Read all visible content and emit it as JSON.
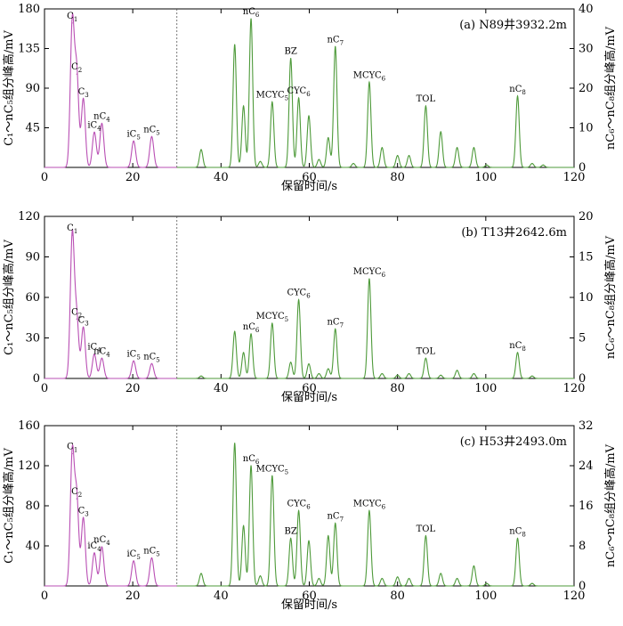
{
  "colors": {
    "light": "#b94fb4",
    "heavy": "#4e9a3a"
  },
  "xlabel": "保留时间/s",
  "chart_data": [
    {
      "type": "line",
      "panel_label": "(a) N89井3932.2m",
      "ylabel_left": "C₁～nC₅组分峰高/mV",
      "ylabel_right": "nC₆～nC₈组分峰高/mV",
      "xlim": [
        0,
        120
      ],
      "xticks": [
        0,
        20,
        40,
        60,
        80,
        100,
        120
      ],
      "ylim_left": [
        0,
        180
      ],
      "yticks_left": [
        45,
        90,
        135,
        180
      ],
      "ylim_right": [
        0,
        40
      ],
      "yticks_right": [
        0,
        10,
        20,
        30,
        40
      ],
      "divider_x": 30,
      "series": [
        {
          "axis": "left",
          "color": "light",
          "peaks": [
            {
              "t": 6.3,
              "h": 164,
              "label": "C",
              "sub": "1"
            },
            {
              "t": 7.3,
              "h": 106,
              "label": "C",
              "sub": "2"
            },
            {
              "t": 8.8,
              "h": 78,
              "label": "C",
              "sub": "3"
            },
            {
              "t": 11.3,
              "h": 40,
              "label": "iC",
              "sub": "4"
            },
            {
              "t": 13.0,
              "h": 50,
              "label": "nC",
              "sub": "4"
            },
            {
              "t": 20.2,
              "h": 30,
              "label": "iC",
              "sub": "5"
            },
            {
              "t": 24.3,
              "h": 35,
              "label": "nC",
              "sub": "5"
            }
          ]
        },
        {
          "axis": "right",
          "color": "heavy",
          "peaks": [
            {
              "t": 35.5,
              "h": 4.5
            },
            {
              "t": 43.1,
              "h": 31
            },
            {
              "t": 45.1,
              "h": 15.5
            },
            {
              "t": 46.8,
              "h": 37.5,
              "label": "nC",
              "sub": "6"
            },
            {
              "t": 48.9,
              "h": 1.5
            },
            {
              "t": 51.6,
              "h": 16.5,
              "label": "MCYC",
              "sub": "5"
            },
            {
              "t": 55.8,
              "h": 27.5,
              "label": "BZ",
              "sub": ""
            },
            {
              "t": 57.6,
              "h": 17.5,
              "label": "CYC",
              "sub": "6"
            },
            {
              "t": 59.9,
              "h": 13
            },
            {
              "t": 62.2,
              "h": 2
            },
            {
              "t": 64.3,
              "h": 7.5
            },
            {
              "t": 65.9,
              "h": 30.5,
              "label": "nC",
              "sub": "7"
            },
            {
              "t": 70.0,
              "h": 1
            },
            {
              "t": 73.6,
              "h": 21.5,
              "label": "MCYC",
              "sub": "6"
            },
            {
              "t": 76.5,
              "h": 5
            },
            {
              "t": 80.0,
              "h": 3
            },
            {
              "t": 82.6,
              "h": 3
            },
            {
              "t": 86.4,
              "h": 15.5,
              "label": "TOL",
              "sub": ""
            },
            {
              "t": 89.8,
              "h": 9
            },
            {
              "t": 93.5,
              "h": 5
            },
            {
              "t": 97.3,
              "h": 5
            },
            {
              "t": 100.2,
              "h": 0.6
            },
            {
              "t": 107.2,
              "h": 18,
              "label": "nC",
              "sub": "8"
            },
            {
              "t": 110.5,
              "h": 1
            },
            {
              "t": 113.0,
              "h": 0.6
            }
          ]
        }
      ]
    },
    {
      "type": "line",
      "panel_label": "(b) T13井2642.6m",
      "ylabel_left": "C₁～nC₅组分峰高/mV",
      "ylabel_right": "nC₆～nC₈组分峰高/mV",
      "xlim": [
        0,
        120
      ],
      "xticks": [
        0,
        20,
        40,
        60,
        80,
        100,
        120
      ],
      "ylim_left": [
        0,
        120
      ],
      "yticks_left": [
        0,
        30,
        60,
        90,
        120
      ],
      "ylim_right": [
        0,
        20
      ],
      "yticks_right": [
        0,
        5,
        10,
        15,
        20
      ],
      "divider_x": 30,
      "series": [
        {
          "axis": "left",
          "color": "light",
          "peaks": [
            {
              "t": 6.3,
              "h": 106,
              "label": "C",
              "sub": "1"
            },
            {
              "t": 7.3,
              "h": 44,
              "label": "C",
              "sub": "2"
            },
            {
              "t": 8.8,
              "h": 38,
              "label": "C",
              "sub": "3"
            },
            {
              "t": 11.3,
              "h": 18,
              "label": "iC",
              "sub": "4"
            },
            {
              "t": 13.0,
              "h": 15,
              "label": "nC",
              "sub": "4"
            },
            {
              "t": 20.2,
              "h": 13,
              "label": "iC",
              "sub": "5"
            },
            {
              "t": 24.3,
              "h": 11,
              "label": "nC",
              "sub": "5"
            }
          ]
        },
        {
          "axis": "right",
          "color": "heavy",
          "peaks": [
            {
              "t": 35.5,
              "h": 0.3
            },
            {
              "t": 43.1,
              "h": 5.8
            },
            {
              "t": 45.1,
              "h": 3.2
            },
            {
              "t": 46.8,
              "h": 5.5,
              "label": "nC",
              "sub": "6"
            },
            {
              "t": 51.6,
              "h": 6.8,
              "label": "MCYC",
              "sub": "5"
            },
            {
              "t": 55.8,
              "h": 2.0
            },
            {
              "t": 57.6,
              "h": 9.7,
              "label": "CYC",
              "sub": "6"
            },
            {
              "t": 59.9,
              "h": 1.8
            },
            {
              "t": 62.2,
              "h": 0.6
            },
            {
              "t": 64.3,
              "h": 1.2
            },
            {
              "t": 65.9,
              "h": 6.1,
              "label": "nC",
              "sub": "7"
            },
            {
              "t": 73.6,
              "h": 12.3,
              "label": "MCYC",
              "sub": "6"
            },
            {
              "t": 76.5,
              "h": 0.6
            },
            {
              "t": 80.0,
              "h": 0.4
            },
            {
              "t": 82.6,
              "h": 0.6
            },
            {
              "t": 86.4,
              "h": 2.5,
              "label": "TOL",
              "sub": ""
            },
            {
              "t": 89.8,
              "h": 0.4
            },
            {
              "t": 93.5,
              "h": 1.0
            },
            {
              "t": 97.3,
              "h": 0.6
            },
            {
              "t": 107.2,
              "h": 3.2,
              "label": "nC",
              "sub": "8"
            },
            {
              "t": 110.5,
              "h": 0.3
            }
          ]
        }
      ]
    },
    {
      "type": "line",
      "panel_label": "(c) H53井2493.0m",
      "ylabel_left": "C₁～nC₅组分峰高/mV",
      "ylabel_right": "nC₆～nC₈组分峰高/mV",
      "xlim": [
        0,
        120
      ],
      "xticks": [
        0,
        20,
        40,
        60,
        80,
        100,
        120
      ],
      "ylim_left": [
        0,
        160
      ],
      "yticks_left": [
        40,
        80,
        120,
        160
      ],
      "ylim_right": [
        0,
        32
      ],
      "yticks_right": [
        0,
        8,
        16,
        24,
        32
      ],
      "divider_x": 30,
      "series": [
        {
          "axis": "left",
          "color": "light",
          "peaks": [
            {
              "t": 6.3,
              "h": 132,
              "label": "C",
              "sub": "1"
            },
            {
              "t": 7.3,
              "h": 87,
              "label": "C",
              "sub": "2"
            },
            {
              "t": 8.8,
              "h": 68,
              "label": "C",
              "sub": "3"
            },
            {
              "t": 11.3,
              "h": 33,
              "label": "iC",
              "sub": "4"
            },
            {
              "t": 13.0,
              "h": 39,
              "label": "nC",
              "sub": "4"
            },
            {
              "t": 20.2,
              "h": 25,
              "label": "iC",
              "sub": "5"
            },
            {
              "t": 24.3,
              "h": 28,
              "label": "nC",
              "sub": "5"
            }
          ]
        },
        {
          "axis": "right",
          "color": "heavy",
          "peaks": [
            {
              "t": 35.5,
              "h": 2.5
            },
            {
              "t": 43.1,
              "h": 28.5
            },
            {
              "t": 45.1,
              "h": 12
            },
            {
              "t": 46.8,
              "h": 24,
              "label": "nC",
              "sub": "6"
            },
            {
              "t": 48.9,
              "h": 2
            },
            {
              "t": 51.6,
              "h": 22,
              "label": "MCYC",
              "sub": "5"
            },
            {
              "t": 55.8,
              "h": 9.5,
              "label": "BZ",
              "sub": ""
            },
            {
              "t": 57.6,
              "h": 15,
              "label": "CYC",
              "sub": "6"
            },
            {
              "t": 59.9,
              "h": 9
            },
            {
              "t": 62.2,
              "h": 1.5
            },
            {
              "t": 64.3,
              "h": 10
            },
            {
              "t": 65.9,
              "h": 12.5,
              "label": "nC",
              "sub": "7"
            },
            {
              "t": 73.6,
              "h": 15,
              "label": "MCYC",
              "sub": "6"
            },
            {
              "t": 76.5,
              "h": 1.5
            },
            {
              "t": 80.0,
              "h": 1.8
            },
            {
              "t": 82.6,
              "h": 1.5
            },
            {
              "t": 86.4,
              "h": 10,
              "label": "TOL",
              "sub": ""
            },
            {
              "t": 89.8,
              "h": 2.5
            },
            {
              "t": 93.5,
              "h": 1.5
            },
            {
              "t": 97.3,
              "h": 4
            },
            {
              "t": 100.2,
              "h": 0.5
            },
            {
              "t": 107.2,
              "h": 9.5,
              "label": "nC",
              "sub": "8"
            },
            {
              "t": 110.5,
              "h": 0.5
            }
          ]
        }
      ]
    }
  ]
}
